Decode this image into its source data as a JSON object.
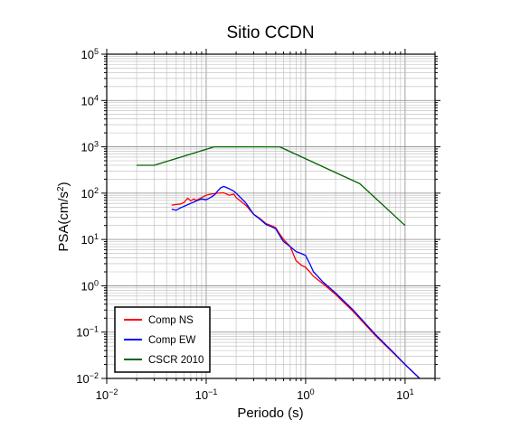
{
  "chart_data": {
    "type": "line",
    "title": "Sitio CCDN",
    "xlabel": "Periodo (s)",
    "ylabel_main": "PSA(cm/s",
    "ylabel_sup": "2",
    "ylabel_close": ")",
    "xscale": "log",
    "yscale": "log",
    "xlim": [
      0.01,
      20
    ],
    "ylim": [
      0.01,
      100000
    ],
    "grid": true,
    "legend_position": "bottom-left",
    "x_ticks": [
      {
        "base": "10",
        "exp": "−2",
        "value": 0.01
      },
      {
        "base": "10",
        "exp": "−1",
        "value": 0.1
      },
      {
        "base": "10",
        "exp": "0",
        "value": 1
      },
      {
        "base": "10",
        "exp": "1",
        "value": 10
      }
    ],
    "y_ticks": [
      {
        "base": "10",
        "exp": "−2",
        "value": 0.01
      },
      {
        "base": "10",
        "exp": "−1",
        "value": 0.1
      },
      {
        "base": "10",
        "exp": "0",
        "value": 1
      },
      {
        "base": "10",
        "exp": "1",
        "value": 10
      },
      {
        "base": "10",
        "exp": "2",
        "value": 100
      },
      {
        "base": "10",
        "exp": "3",
        "value": 1000
      },
      {
        "base": "10",
        "exp": "4",
        "value": 10000
      },
      {
        "base": "10",
        "exp": "5",
        "value": 100000
      }
    ],
    "series": [
      {
        "name": "Comp NS",
        "color": "#ff0000",
        "points": [
          [
            0.045,
            55
          ],
          [
            0.05,
            57
          ],
          [
            0.055,
            58
          ],
          [
            0.06,
            63
          ],
          [
            0.065,
            78
          ],
          [
            0.07,
            68
          ],
          [
            0.075,
            75
          ],
          [
            0.08,
            70
          ],
          [
            0.09,
            80
          ],
          [
            0.1,
            90
          ],
          [
            0.11,
            95
          ],
          [
            0.13,
            100
          ],
          [
            0.15,
            102
          ],
          [
            0.17,
            90
          ],
          [
            0.19,
            95
          ],
          [
            0.2,
            80
          ],
          [
            0.25,
            55
          ],
          [
            0.3,
            35
          ],
          [
            0.35,
            28
          ],
          [
            0.4,
            22
          ],
          [
            0.45,
            20
          ],
          [
            0.5,
            18
          ],
          [
            0.55,
            13
          ],
          [
            0.6,
            10
          ],
          [
            0.7,
            7
          ],
          [
            0.8,
            3.5
          ],
          [
            0.9,
            2.8
          ],
          [
            1.0,
            2.5
          ],
          [
            1.1,
            2.0
          ],
          [
            1.2,
            1.6
          ],
          [
            1.5,
            1.1
          ],
          [
            2.0,
            0.65
          ],
          [
            3.0,
            0.28
          ],
          [
            5.0,
            0.085
          ],
          [
            8.0,
            0.032
          ],
          [
            10.0,
            0.02
          ],
          [
            14.0,
            0.01
          ]
        ]
      },
      {
        "name": "Comp EW",
        "color": "#0000ff",
        "points": [
          [
            0.045,
            45
          ],
          [
            0.05,
            43
          ],
          [
            0.055,
            48
          ],
          [
            0.06,
            52
          ],
          [
            0.07,
            60
          ],
          [
            0.08,
            68
          ],
          [
            0.09,
            75
          ],
          [
            0.1,
            72
          ],
          [
            0.11,
            80
          ],
          [
            0.12,
            90
          ],
          [
            0.13,
            110
          ],
          [
            0.14,
            130
          ],
          [
            0.15,
            140
          ],
          [
            0.17,
            125
          ],
          [
            0.19,
            110
          ],
          [
            0.2,
            100
          ],
          [
            0.25,
            62
          ],
          [
            0.3,
            35
          ],
          [
            0.35,
            27
          ],
          [
            0.4,
            21
          ],
          [
            0.45,
            19
          ],
          [
            0.5,
            17
          ],
          [
            0.55,
            12
          ],
          [
            0.6,
            9
          ],
          [
            0.7,
            7
          ],
          [
            0.8,
            5.5
          ],
          [
            0.9,
            5.0
          ],
          [
            1.0,
            4.5
          ],
          [
            1.1,
            3.0
          ],
          [
            1.2,
            2.0
          ],
          [
            1.5,
            1.2
          ],
          [
            2.0,
            0.7
          ],
          [
            3.0,
            0.3
          ],
          [
            5.0,
            0.09
          ],
          [
            8.0,
            0.033
          ],
          [
            10.0,
            0.02
          ],
          [
            14.0,
            0.01
          ]
        ]
      },
      {
        "name": "CSCR 2010",
        "color": "#006400",
        "points": [
          [
            0.02,
            400
          ],
          [
            0.03,
            400
          ],
          [
            0.12,
            1000
          ],
          [
            0.55,
            1000
          ],
          [
            3.5,
            160
          ],
          [
            10.0,
            20
          ]
        ]
      }
    ]
  }
}
